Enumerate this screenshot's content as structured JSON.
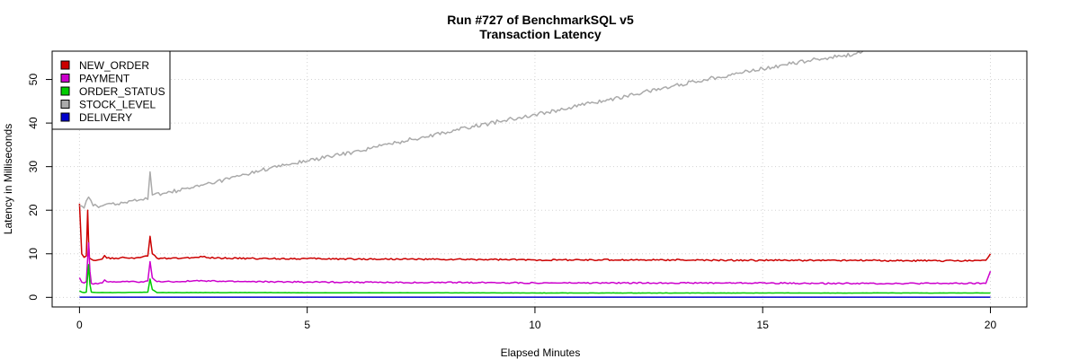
{
  "chart_data": {
    "type": "line",
    "title": "Run #727 of BenchmarkSQL v5",
    "subtitle": "Transaction Latency",
    "xlabel": "Elapsed Minutes",
    "ylabel": "Latency in Milliseconds",
    "xlim": [
      -0.6,
      20.8
    ],
    "ylim": [
      -2.2,
      56.5
    ],
    "xticks": [
      0,
      5,
      10,
      15,
      20
    ],
    "yticks": [
      0,
      10,
      20,
      30,
      40,
      50
    ],
    "grid": true,
    "legend_position": "top-left",
    "series": [
      {
        "name": "NEW_ORDER",
        "color": "#cc0000",
        "points": [
          [
            0,
            21.5
          ],
          [
            0.05,
            10
          ],
          [
            0.1,
            9.2
          ],
          [
            0.15,
            9.5
          ],
          [
            0.18,
            20
          ],
          [
            0.2,
            13
          ],
          [
            0.22,
            9
          ],
          [
            0.3,
            8.5
          ],
          [
            0.4,
            8.6
          ],
          [
            0.5,
            8.8
          ],
          [
            0.55,
            9.6
          ],
          [
            0.6,
            9
          ],
          [
            0.8,
            9
          ],
          [
            1,
            9.1
          ],
          [
            1.2,
            8.9
          ],
          [
            1.5,
            9.5
          ],
          [
            1.55,
            14
          ],
          [
            1.6,
            10
          ],
          [
            1.7,
            9
          ],
          [
            2,
            8.9
          ],
          [
            2.5,
            9.1
          ],
          [
            2.7,
            9.3
          ],
          [
            3,
            9
          ],
          [
            4,
            8.9
          ],
          [
            5,
            8.9
          ],
          [
            6,
            8.8
          ],
          [
            7,
            8.8
          ],
          [
            8,
            8.7
          ],
          [
            9,
            8.7
          ],
          [
            10,
            8.6
          ],
          [
            11,
            8.6
          ],
          [
            12,
            8.6
          ],
          [
            13,
            8.6
          ],
          [
            14,
            8.5
          ],
          [
            15,
            8.5
          ],
          [
            16,
            8.5
          ],
          [
            17,
            8.5
          ],
          [
            18,
            8.4
          ],
          [
            19,
            8.4
          ],
          [
            19.9,
            8.5
          ],
          [
            20,
            10
          ]
        ]
      },
      {
        "name": "PAYMENT",
        "color": "#cc00cc",
        "points": [
          [
            0,
            4.5
          ],
          [
            0.05,
            3.5
          ],
          [
            0.1,
            3.3
          ],
          [
            0.15,
            3.6
          ],
          [
            0.2,
            12.5
          ],
          [
            0.23,
            6
          ],
          [
            0.26,
            3.2
          ],
          [
            0.4,
            3.1
          ],
          [
            0.5,
            3.3
          ],
          [
            0.55,
            4
          ],
          [
            0.6,
            3.6
          ],
          [
            0.8,
            3.5
          ],
          [
            1,
            3.6
          ],
          [
            1.4,
            3.5
          ],
          [
            1.5,
            3.8
          ],
          [
            1.55,
            8.2
          ],
          [
            1.6,
            4.5
          ],
          [
            1.7,
            3.6
          ],
          [
            2,
            3.6
          ],
          [
            2.5,
            3.8
          ],
          [
            3,
            3.7
          ],
          [
            4,
            3.6
          ],
          [
            5,
            3.5
          ],
          [
            6,
            3.5
          ],
          [
            7,
            3.4
          ],
          [
            8,
            3.4
          ],
          [
            9,
            3.4
          ],
          [
            10,
            3.3
          ],
          [
            11,
            3.3
          ],
          [
            12,
            3.3
          ],
          [
            13,
            3.3
          ],
          [
            14,
            3.3
          ],
          [
            15,
            3.3
          ],
          [
            16,
            3.2
          ],
          [
            17,
            3.2
          ],
          [
            18,
            3.2
          ],
          [
            19,
            3.2
          ],
          [
            19.9,
            3.2
          ],
          [
            20,
            6
          ]
        ]
      },
      {
        "name": "ORDER_STATUS",
        "color": "#00cc00",
        "points": [
          [
            0,
            1.5
          ],
          [
            0.05,
            1.2
          ],
          [
            0.1,
            1.1
          ],
          [
            0.15,
            1.2
          ],
          [
            0.2,
            7.5
          ],
          [
            0.23,
            3
          ],
          [
            0.26,
            1.2
          ],
          [
            0.4,
            1.1
          ],
          [
            0.6,
            1.1
          ],
          [
            1,
            1.1
          ],
          [
            1.5,
            1.2
          ],
          [
            1.55,
            4.2
          ],
          [
            1.6,
            1.8
          ],
          [
            1.7,
            1.1
          ],
          [
            2,
            1.1
          ],
          [
            3,
            1.1
          ],
          [
            4,
            1.1
          ],
          [
            5,
            1.05
          ],
          [
            6,
            1.05
          ],
          [
            8,
            1.05
          ],
          [
            10,
            1
          ],
          [
            12,
            1
          ],
          [
            14,
            1
          ],
          [
            16,
            1
          ],
          [
            18,
            1
          ],
          [
            19.9,
            1
          ],
          [
            20,
            1
          ]
        ]
      },
      {
        "name": "STOCK_LEVEL",
        "color": "#aaaaaa",
        "points": [
          [
            0,
            21
          ],
          [
            0.1,
            20.5
          ],
          [
            0.2,
            23
          ],
          [
            0.3,
            21
          ],
          [
            0.5,
            21
          ],
          [
            0.7,
            21.5
          ],
          [
            1,
            21.8
          ],
          [
            1.3,
            22.3
          ],
          [
            1.5,
            22.5
          ],
          [
            1.55,
            28.8
          ],
          [
            1.6,
            23.5
          ],
          [
            2,
            24.2
          ],
          [
            2.5,
            25.2
          ],
          [
            3,
            26.5
          ],
          [
            3.5,
            27.8
          ],
          [
            4,
            29.2
          ],
          [
            4.5,
            30.3
          ],
          [
            5,
            31.3
          ],
          [
            5.5,
            32.3
          ],
          [
            6,
            33.3
          ],
          [
            6.5,
            34.5
          ],
          [
            7,
            35.6
          ],
          [
            7.5,
            36.7
          ],
          [
            8,
            37.8
          ],
          [
            8.5,
            38.9
          ],
          [
            9,
            39.9
          ],
          [
            9.5,
            41
          ],
          [
            10,
            42
          ],
          [
            10.5,
            43
          ],
          [
            11,
            44.1
          ],
          [
            11.5,
            45.1
          ],
          [
            12,
            46.2
          ],
          [
            12.5,
            47.3
          ],
          [
            13,
            48.4
          ],
          [
            13.5,
            49.5
          ],
          [
            14,
            50.5
          ],
          [
            14.5,
            51.5
          ],
          [
            15,
            52.5
          ],
          [
            15.5,
            53.4
          ],
          [
            16,
            54.3
          ],
          [
            16.5,
            55.1
          ],
          [
            17,
            55.8
          ],
          [
            17.2,
            56.5
          ]
        ]
      },
      {
        "name": "DELIVERY",
        "color": "#0000cc",
        "points": [
          [
            0,
            0.05
          ],
          [
            5,
            0.05
          ],
          [
            10,
            0.05
          ],
          [
            15,
            0.05
          ],
          [
            20,
            0.05
          ]
        ]
      }
    ]
  }
}
